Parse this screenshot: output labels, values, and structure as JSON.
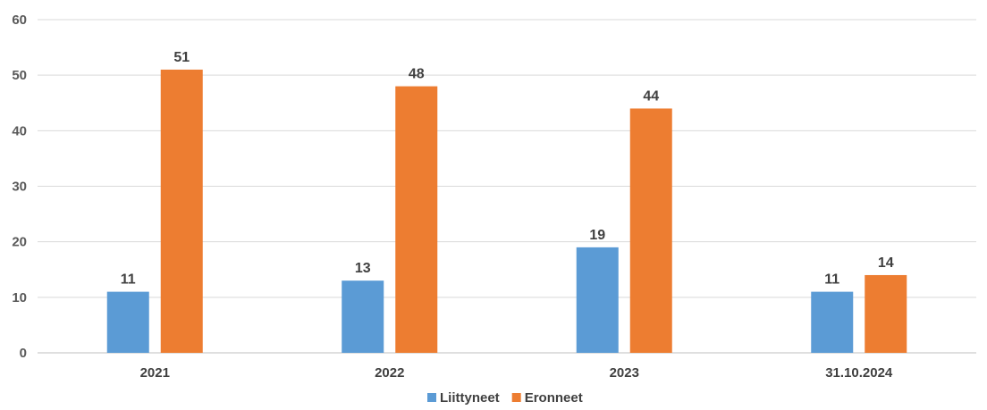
{
  "chart_data": {
    "type": "bar",
    "categories": [
      "2021",
      "2022",
      "2023",
      "31.10.2024"
    ],
    "series": [
      {
        "name": "Liittyneet",
        "values": [
          11,
          13,
          19,
          11
        ],
        "color": "#5B9BD5"
      },
      {
        "name": "Eronneet",
        "values": [
          51,
          48,
          44,
          14
        ],
        "color": "#ED7D31"
      }
    ],
    "ylim": [
      0,
      60
    ],
    "yticks": [
      0,
      10,
      20,
      30,
      40,
      50,
      60
    ],
    "grid": true,
    "data_labels": true,
    "legend_position": "bottom"
  }
}
